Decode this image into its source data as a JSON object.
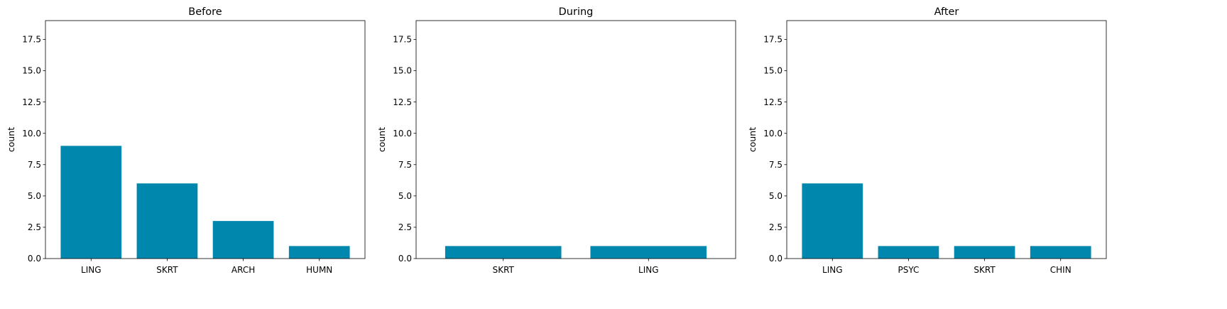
{
  "chart_data": [
    {
      "type": "bar",
      "title": "Before",
      "ylabel": "count",
      "categories": [
        "LING",
        "SKRT",
        "ARCH",
        "HUMN"
      ],
      "values": [
        9,
        6,
        3,
        1
      ],
      "ylim": [
        0,
        19
      ],
      "yticks": [
        0.0,
        2.5,
        5.0,
        7.5,
        10.0,
        12.5,
        15.0,
        17.5
      ],
      "ytick_labels": [
        "0.0",
        "2.5",
        "5.0",
        "7.5",
        "10.0",
        "12.5",
        "15.0",
        "17.5"
      ],
      "color": "#0087ae",
      "grid": false
    },
    {
      "type": "bar",
      "title": "During",
      "ylabel": "count",
      "categories": [
        "SKRT",
        "LING"
      ],
      "values": [
        1,
        1
      ],
      "ylim": [
        0,
        19
      ],
      "yticks": [
        0.0,
        2.5,
        5.0,
        7.5,
        10.0,
        12.5,
        15.0,
        17.5
      ],
      "ytick_labels": [
        "0.0",
        "2.5",
        "5.0",
        "7.5",
        "10.0",
        "12.5",
        "15.0",
        "17.5"
      ],
      "color": "#0087ae",
      "grid": false
    },
    {
      "type": "bar",
      "title": "After",
      "ylabel": "count",
      "categories": [
        "LING",
        "PSYC",
        "SKRT",
        "CHIN"
      ],
      "values": [
        6,
        1,
        1,
        1
      ],
      "ylim": [
        0,
        19
      ],
      "yticks": [
        0.0,
        2.5,
        5.0,
        7.5,
        10.0,
        12.5,
        15.0,
        17.5
      ],
      "ytick_labels": [
        "0.0",
        "2.5",
        "5.0",
        "7.5",
        "10.0",
        "12.5",
        "15.0",
        "17.5"
      ],
      "color": "#0087ae",
      "grid": false
    }
  ]
}
